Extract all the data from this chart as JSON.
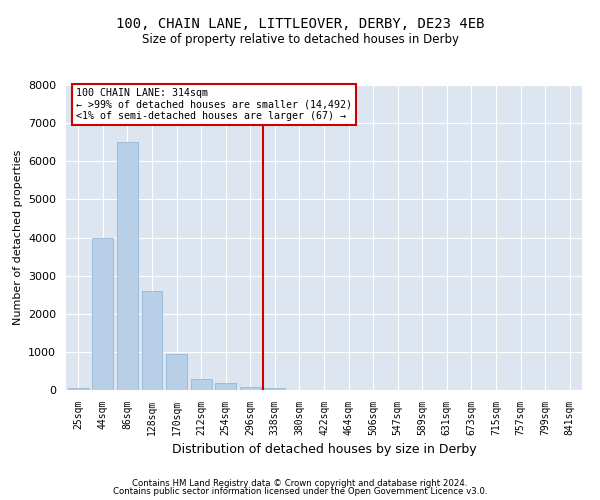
{
  "title_line1": "100, CHAIN LANE, LITTLEOVER, DERBY, DE23 4EB",
  "title_line2": "Size of property relative to detached houses in Derby",
  "xlabel": "Distribution of detached houses by size in Derby",
  "ylabel": "Number of detached properties",
  "bar_color": "#b8cfe8",
  "bar_edge_color": "#8aafd4",
  "background_color": "#dde6f0",
  "grid_color": "#ffffff",
  "vline_color": "#cc0000",
  "vline_index": 7.5,
  "legend_title": "100 CHAIN LANE: 314sqm",
  "legend_line1": "← >99% of detached houses are smaller (14,492)",
  "legend_line2": "<1% of semi-detached houses are larger (67) →",
  "legend_box_color": "#cc0000",
  "categories": [
    "25sqm",
    "44sqm",
    "86sqm",
    "128sqm",
    "170sqm",
    "212sqm",
    "254sqm",
    "296sqm",
    "338sqm",
    "380sqm",
    "422sqm",
    "464sqm",
    "506sqm",
    "547sqm",
    "589sqm",
    "631sqm",
    "673sqm",
    "715sqm",
    "757sqm",
    "799sqm",
    "841sqm"
  ],
  "values": [
    50,
    4000,
    6500,
    2600,
    950,
    280,
    180,
    90,
    40,
    0,
    0,
    0,
    0,
    0,
    0,
    0,
    0,
    0,
    0,
    0,
    0
  ],
  "ylim": [
    0,
    8000
  ],
  "yticks": [
    0,
    1000,
    2000,
    3000,
    4000,
    5000,
    6000,
    7000,
    8000
  ],
  "footer_line1": "Contains HM Land Registry data © Crown copyright and database right 2024.",
  "footer_line2": "Contains public sector information licensed under the Open Government Licence v3.0."
}
